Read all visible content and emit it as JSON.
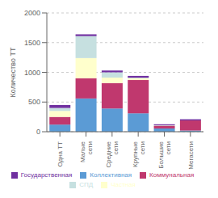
{
  "chart_data": {
    "type": "bar",
    "stacked": true,
    "categories": [
      "Одна ТТ",
      "Малые\nсети",
      "Средние\nсети",
      "Крупные\nсети",
      "Большие\nсети",
      "Мегасети"
    ],
    "series": [
      {
        "name": "Коллективная",
        "color": "#5b9bd5",
        "values": [
          120,
          560,
          390,
          310,
          55,
          20
        ]
      },
      {
        "name": "Коммунальная",
        "color": "#c0386e",
        "values": [
          130,
          340,
          430,
          560,
          40,
          170
        ]
      },
      {
        "name": "Частная",
        "color": "#ffffcc",
        "values": [
          100,
          340,
          90,
          30,
          10,
          0
        ]
      },
      {
        "name": "СПД",
        "color": "#c6e0e0",
        "values": [
          50,
          370,
          90,
          10,
          0,
          0
        ]
      },
      {
        "name": "Государственная",
        "color": "#7030a0",
        "values": [
          50,
          30,
          30,
          30,
          20,
          20
        ]
      }
    ],
    "ylabel": "Количество ТТ",
    "ylim": [
      0,
      2000
    ],
    "yticks": [
      0,
      500,
      1000,
      1500,
      2000
    ],
    "grid": true,
    "legend": "bottom"
  }
}
